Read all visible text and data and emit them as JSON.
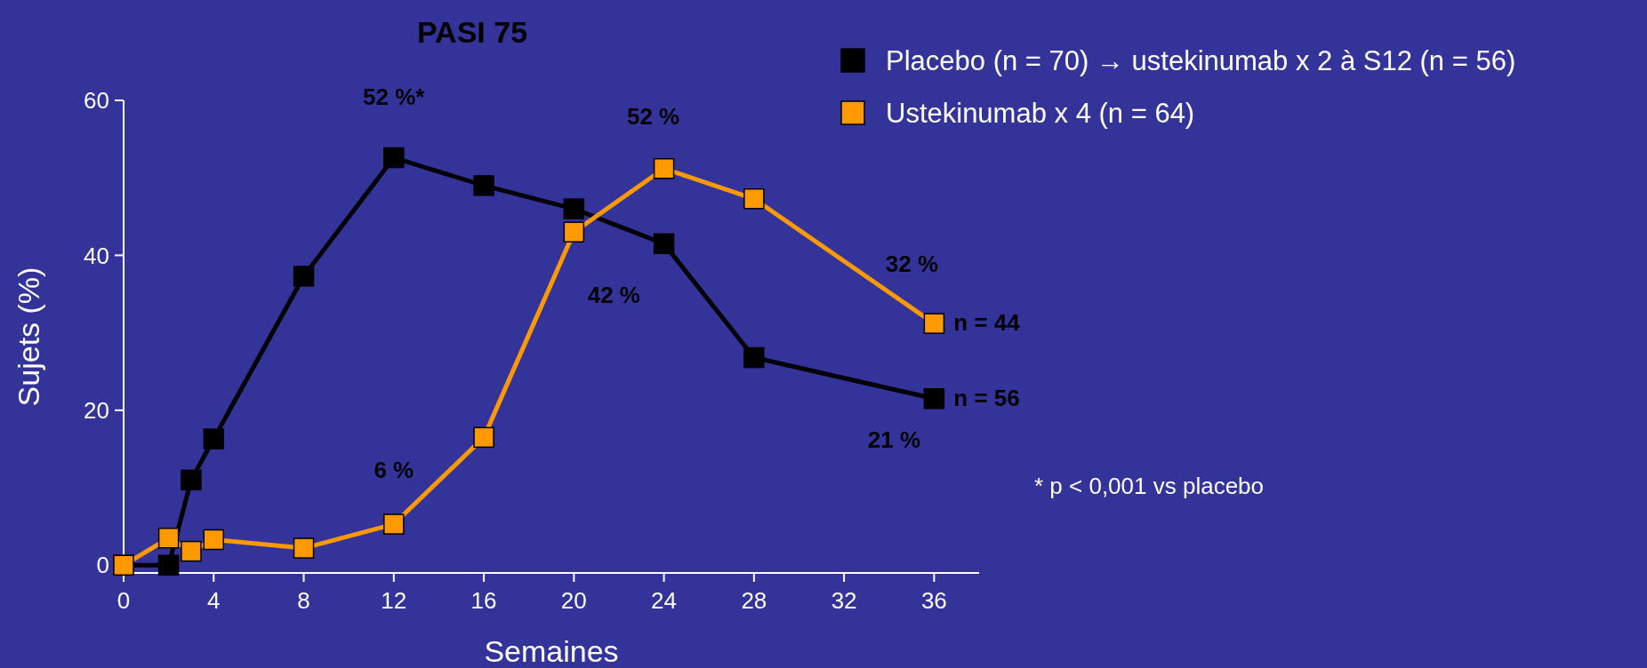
{
  "chart_data": {
    "type": "line",
    "title": "PASI 75",
    "xlabel": "Semaines",
    "ylabel": "Sujets (%)",
    "x": [
      0,
      2,
      3,
      4,
      8,
      12,
      16,
      20,
      24,
      28,
      36
    ],
    "series": [
      {
        "name": "Placebo (n = 70) → ustekinumab x 2 à S12 (n = 56)",
        "color": "#000000",
        "values": [
          0,
          0,
          11,
          16.3,
          37.3,
          52.6,
          49,
          46,
          41.5,
          26.8,
          21.5
        ]
      },
      {
        "name": "Ustekinumab x 4 (n = 64)",
        "color": "#ff9900",
        "values": [
          0,
          3.5,
          1.8,
          3.3,
          2.2,
          5.3,
          16.5,
          43,
          51.2,
          47.3,
          31.2
        ]
      }
    ],
    "xlim": [
      0,
      38
    ],
    "ylim": [
      -1,
      60
    ],
    "xticks": [
      0,
      4,
      8,
      12,
      16,
      20,
      24,
      28,
      32,
      36
    ],
    "yticks": [
      0,
      20,
      40,
      60
    ],
    "grid": false,
    "legend": "top right",
    "marker": "square",
    "line_style": "solid",
    "annotations": [
      {
        "text": "52 %*",
        "x": 12,
        "y": 52.6
      },
      {
        "text": "52 %",
        "x": 24,
        "y": 51.2
      },
      {
        "text": "42 %",
        "x": 20,
        "y": 43
      },
      {
        "text": "6 %",
        "x": 12,
        "y": 5.3
      },
      {
        "text": "32 %",
        "x": 36,
        "y": 31.2
      },
      {
        "text": "21 %",
        "x": 36,
        "y": 21.5
      },
      {
        "text": "n = 44",
        "x": 36,
        "y": 31.2
      },
      {
        "text": "n = 56",
        "x": 36,
        "y": 21.5
      },
      "* p < 0,001 vs placebo"
    ]
  }
}
